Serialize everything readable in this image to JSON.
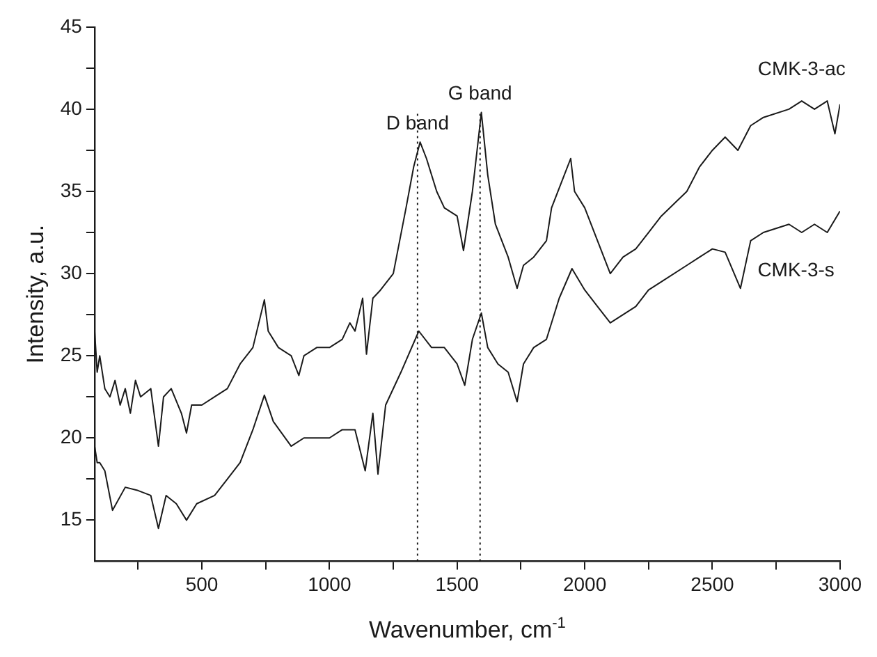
{
  "chart_data": {
    "type": "line",
    "xlabel": "Wavenumber, cm$^{-1}$",
    "ylabel": "Intensity, a.u.",
    "xlim": [
      80,
      3000
    ],
    "ylim": [
      12.5,
      45
    ],
    "xticks": [
      {
        "value": 250,
        "label": null
      },
      500,
      {
        "value": 750,
        "label": null
      },
      1000,
      {
        "value": 1250,
        "label": null
      },
      1500,
      {
        "value": 1750,
        "label": null
      },
      2000,
      {
        "value": 2250,
        "label": null
      },
      2500,
      {
        "value": 2750,
        "label": null
      },
      3000
    ],
    "yticks": [
      15,
      {
        "value": 17.5,
        "label": null
      },
      20,
      {
        "value": 22.5,
        "label": null
      },
      25,
      {
        "value": 27.5,
        "label": null
      },
      30,
      {
        "value": 32.5,
        "label": null
      },
      35,
      {
        "value": 37.5,
        "label": null
      },
      40,
      {
        "value": 42.5,
        "label": null
      },
      45
    ],
    "grid": false,
    "legend": false,
    "marker": "none",
    "line_style": "solid",
    "series": [
      {
        "name": "CMK-3-ac",
        "color": "#1a1a1a",
        "x": [
          80,
          90,
          100,
          120,
          140,
          160,
          180,
          200,
          220,
          240,
          260,
          300,
          330,
          350,
          380,
          420,
          440,
          460,
          500,
          550,
          600,
          650,
          700,
          745,
          760,
          800,
          850,
          880,
          900,
          950,
          1000,
          1050,
          1080,
          1100,
          1130,
          1145,
          1170,
          1200,
          1250,
          1300,
          1330,
          1355,
          1380,
          1420,
          1450,
          1500,
          1525,
          1560,
          1595,
          1620,
          1650,
          1700,
          1735,
          1760,
          1800,
          1850,
          1870,
          1945,
          1960,
          2000,
          2050,
          2100,
          2150,
          2200,
          2250,
          2300,
          2400,
          2450,
          2500,
          2550,
          2600,
          2650,
          2700,
          2800,
          2850,
          2900,
          2950,
          2980,
          3000
        ],
        "values": [
          26.5,
          24,
          25,
          23,
          22.5,
          23.5,
          22,
          23,
          21.5,
          23.5,
          22.5,
          23,
          19.5,
          22.5,
          23,
          21.5,
          20.3,
          22,
          22,
          22.5,
          23,
          24.5,
          25.5,
          28.4,
          26.5,
          25.5,
          25,
          23.8,
          25,
          25.5,
          25.5,
          26,
          27,
          26.5,
          28.5,
          25.1,
          28.5,
          29,
          30,
          34,
          36.5,
          38,
          37,
          35,
          34,
          33.5,
          31.4,
          35,
          39.8,
          36,
          33,
          31,
          29.1,
          30.5,
          31,
          32,
          34,
          37,
          35,
          34,
          32,
          30,
          31,
          31.5,
          32.5,
          33.5,
          35,
          36.5,
          37.5,
          38.3,
          37.5,
          39,
          39.5,
          40,
          40.5,
          40,
          40.5,
          38.5,
          40.3
        ]
      },
      {
        "name": "CMK-3-s",
        "color": "#1a1a1a",
        "x": [
          80,
          90,
          100,
          120,
          150,
          200,
          250,
          300,
          330,
          360,
          400,
          440,
          480,
          550,
          600,
          650,
          700,
          745,
          780,
          850,
          900,
          950,
          1000,
          1050,
          1100,
          1140,
          1170,
          1190,
          1220,
          1280,
          1350,
          1400,
          1450,
          1500,
          1530,
          1560,
          1595,
          1620,
          1660,
          1700,
          1735,
          1760,
          1800,
          1850,
          1900,
          1950,
          2000,
          2050,
          2100,
          2150,
          2200,
          2250,
          2300,
          2400,
          2450,
          2500,
          2550,
          2610,
          2650,
          2700,
          2800,
          2850,
          2900,
          2950,
          3000
        ],
        "values": [
          19.5,
          18.5,
          18.5,
          18,
          15.6,
          17,
          16.8,
          16.5,
          14.5,
          16.5,
          16,
          15,
          16,
          16.5,
          17.5,
          18.5,
          20.5,
          22.6,
          21,
          19.5,
          20,
          20,
          20,
          20.5,
          20.5,
          18,
          21.5,
          17.8,
          22,
          24,
          26.5,
          25.5,
          25.5,
          24.5,
          23.2,
          26,
          27.6,
          25.5,
          24.5,
          24,
          22.2,
          24.5,
          25.5,
          26,
          28.5,
          30.3,
          29,
          28,
          27,
          27.5,
          28,
          29,
          29.5,
          30.5,
          31,
          31.5,
          31.3,
          29.1,
          32,
          32.5,
          33,
          32.5,
          33,
          32.5,
          33.8
        ]
      }
    ],
    "ref_lines": [
      {
        "axis": "x",
        "value": 1345,
        "line_style": "dotted",
        "color": "#1a1a1a"
      },
      {
        "axis": "x",
        "value": 1590,
        "line_style": "dotted",
        "color": "#1a1a1a"
      }
    ],
    "annotations": [
      {
        "text": "D band",
        "x": 1345,
        "y": 38
      },
      {
        "text": "G band",
        "x": 1590,
        "y": 39.8
      }
    ]
  }
}
